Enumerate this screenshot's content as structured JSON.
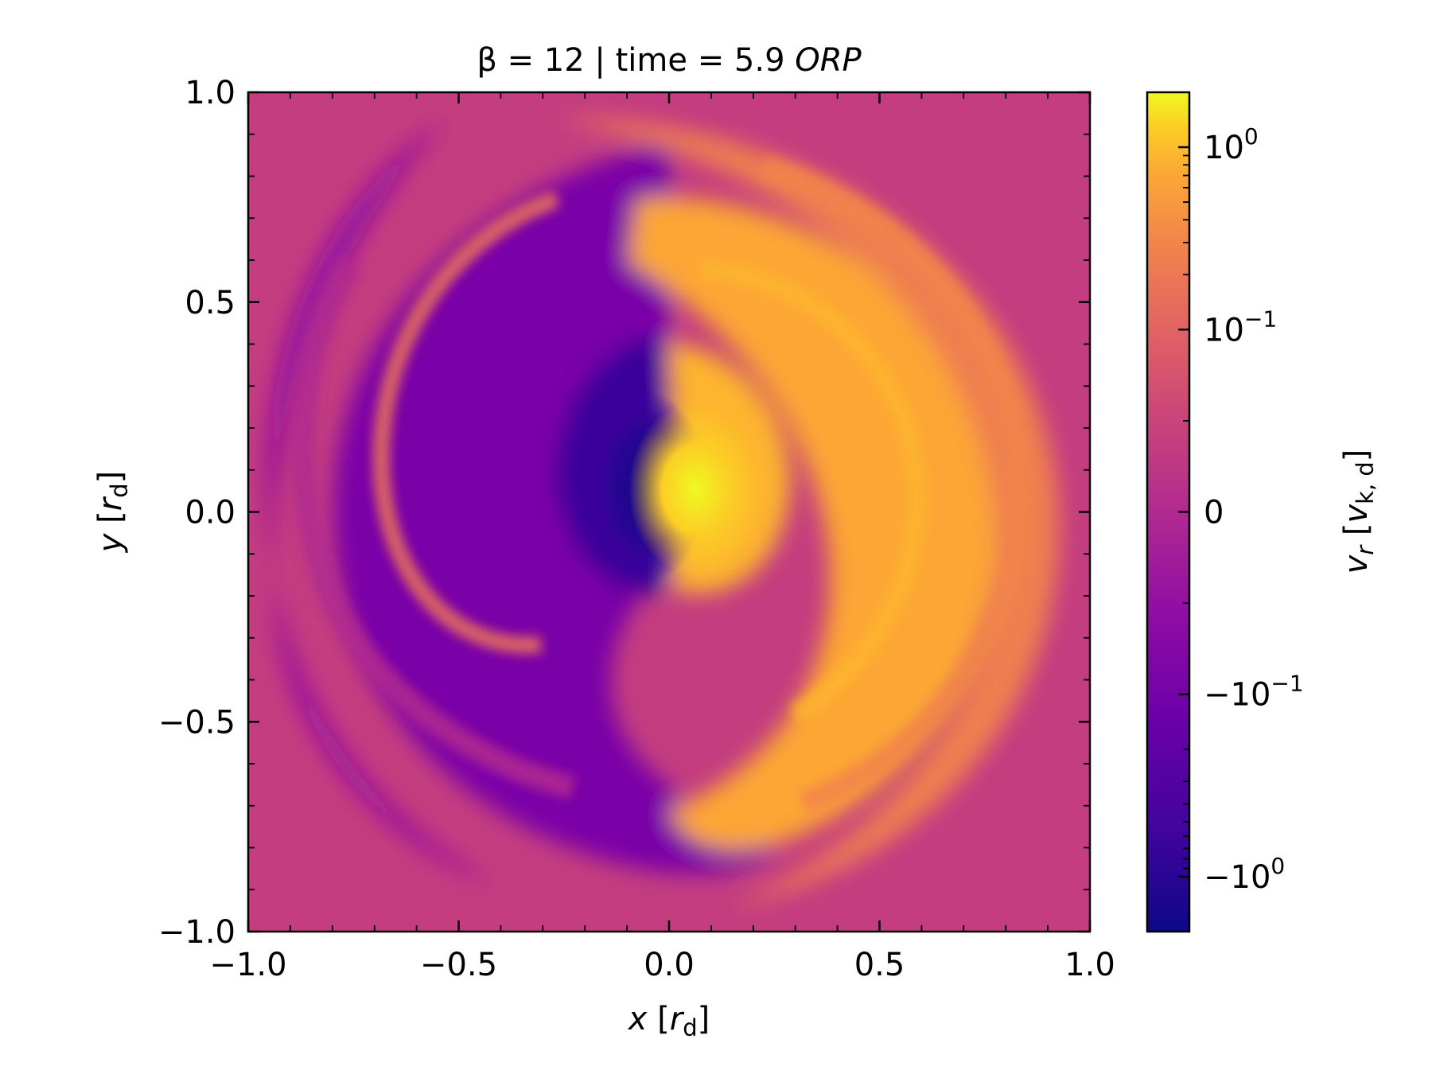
{
  "chart_data": {
    "type": "heatmap",
    "title": {
      "prefix": "β = 12 | time = 5.9 ",
      "suffix": "ORP"
    },
    "xlabel": {
      "var": "x",
      "open": " [",
      "unit": "r",
      "sub": "d",
      "close": "]"
    },
    "ylabel": {
      "var": "y",
      "open": " [",
      "unit": "r",
      "sub": "d",
      "close": "]"
    },
    "colorbar_label": {
      "var": "v",
      "var_sub": "r",
      "open": " [",
      "unit": "v",
      "unit_sub": "k, d",
      "close": "]"
    },
    "xlim": [
      -1.0,
      1.0
    ],
    "ylim": [
      -1.0,
      1.0
    ],
    "x_ticks": [
      -1.0,
      -0.5,
      0.0,
      0.5,
      1.0
    ],
    "y_ticks": [
      -1.0,
      -0.5,
      0.0,
      0.5,
      1.0
    ],
    "x_tick_labels": [
      "−1.0",
      "−0.5",
      "0.0",
      "0.5",
      "1.0"
    ],
    "y_tick_labels": [
      "−1.0",
      "−0.5",
      "0.0",
      "0.5",
      "1.0"
    ],
    "colormap": "plasma",
    "colorbar_scale": "symlog",
    "colorbar_ticks": [
      {
        "value": 1.0,
        "base": "10",
        "exp": "0"
      },
      {
        "value": 0.1,
        "base": "10",
        "exp": "−1"
      },
      {
        "value": 0,
        "base": "0",
        "exp": ""
      },
      {
        "value": -0.1,
        "base": "−10",
        "exp": "−1"
      },
      {
        "value": -1.0,
        "base": "−10",
        "exp": "0"
      }
    ],
    "colorbar_range": [
      -2.0,
      2.0
    ],
    "field_description_values": {
      "center": [
        0.0,
        0.05
      ],
      "peak_positive": 1.5,
      "peak_negative": -1.5
    },
    "colors": {
      "deep": "#0d0887",
      "purple": "#6a00a8",
      "magenta": "#b12a90",
      "pink": "#e16462",
      "orange": "#fca636",
      "yellow": "#f0f921"
    }
  }
}
